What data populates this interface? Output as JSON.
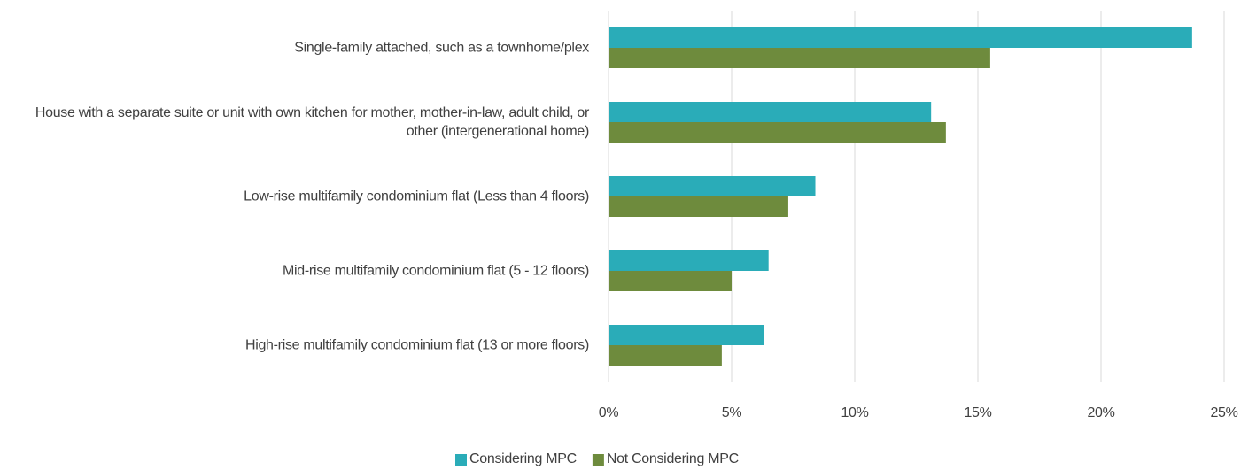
{
  "chart_data": {
    "type": "bar",
    "orientation": "horizontal",
    "categories": [
      "Single-family attached, such as a townhome/plex",
      "House with a separate suite or unit with own kitchen for mother, mother-in-law, adult child, or other (intergenerational home)",
      "Low-rise multifamily condominium flat (Less than 4 floors)",
      "Mid-rise multifamily condominium flat (5 - 12 floors)",
      "High-rise multifamily condominium flat (13 or more floors)"
    ],
    "series": [
      {
        "name": "Considering MPC",
        "color": "#2aacb8",
        "values": [
          23.7,
          13.1,
          8.4,
          6.5,
          6.3
        ]
      },
      {
        "name": "Not Considering MPC",
        "color": "#6e8b3d",
        "values": [
          15.5,
          13.7,
          7.3,
          5.0,
          4.6
        ]
      }
    ],
    "xlim": [
      0,
      25
    ],
    "xticks": [
      {
        "value": 0,
        "label": "0%"
      },
      {
        "value": 5,
        "label": "5%"
      },
      {
        "value": 10,
        "label": "10%"
      },
      {
        "value": 15,
        "label": "15%"
      },
      {
        "value": 20,
        "label": "20%"
      },
      {
        "value": 25,
        "label": "25%"
      }
    ],
    "grid": true,
    "legend": "bottom"
  }
}
